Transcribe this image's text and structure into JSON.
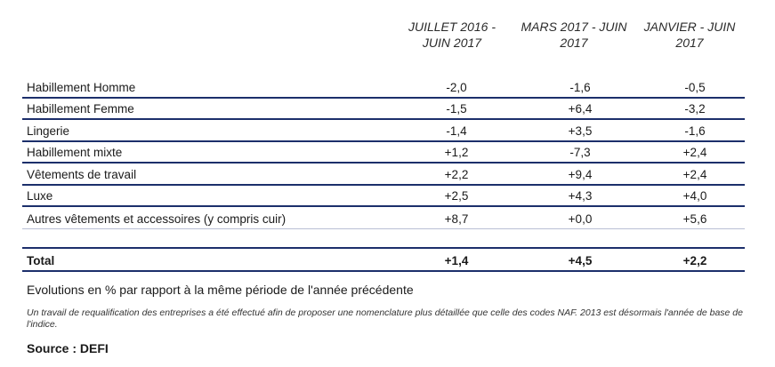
{
  "headers": [
    "JUILLET 2016 -\nJUIN 2017",
    "MARS 2017 - JUIN\n2017",
    "JANVIER - JUIN\n2017"
  ],
  "rows": [
    {
      "label": "Habillement Homme",
      "v1": "-2,0",
      "v2": "-1,6",
      "v3": "-0,5"
    },
    {
      "label": "Habillement Femme",
      "v1": "-1,5",
      "v2": "+6,4",
      "v3": "-3,2"
    },
    {
      "label": "Lingerie",
      "v1": "-1,4",
      "v2": "+3,5",
      "v3": "-1,6"
    },
    {
      "label": "Habillement mixte",
      "v1": "+1,2",
      "v2": "-7,3",
      "v3": "+2,4"
    },
    {
      "label": "Vêtements de travail",
      "v1": "+2,2",
      "v2": "+9,4",
      "v3": "+2,4"
    },
    {
      "label": "Luxe",
      "v1": "+2,5",
      "v2": "+4,3",
      "v3": "+4,0"
    },
    {
      "label": "Autres vêtements et accessoires (y compris cuir)",
      "v1": "+8,7",
      "v2": "+0,0",
      "v3": "+5,6"
    }
  ],
  "total": {
    "label": "Total",
    "v1": "+1,4",
    "v2": "+4,5",
    "v3": "+2,2"
  },
  "note": "Evolutions en % par rapport à la même période de l'année précédente",
  "footnote": "Un travail de requalification des entreprises a été effectué afin de proposer une nomenclature plus détaillée que celle des codes NAF. 2013 est désormais l'année de base de l'indice.",
  "source": "Source : DEFI"
}
